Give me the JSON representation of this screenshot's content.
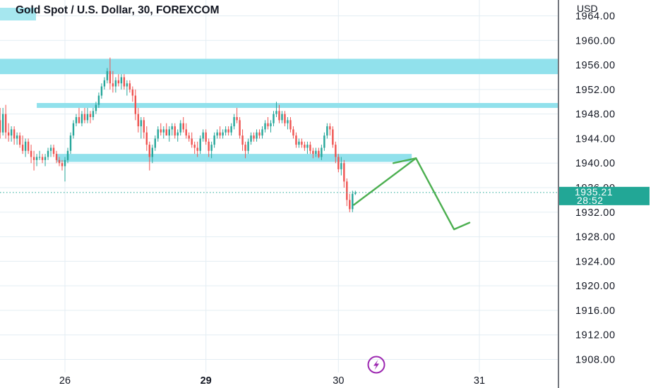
{
  "title": "Gold Spot / U.S. Dollar, 30, FOREXCOM",
  "currency": "USD",
  "colors": {
    "up": "#26a69a",
    "down": "#ef5350",
    "zone": "#91e1ec",
    "arrow": "#4caf50",
    "price_badge": "#22a796",
    "grid": "#e3edf3",
    "lightning": "#9c27b0"
  },
  "chart_data": {
    "type": "candlestick",
    "title": "Gold Spot / U.S. Dollar, 30, FOREXCOM",
    "ylabel": "USD",
    "ylim": [
      1906,
      1966
    ],
    "y_ticks": [
      "1964.00",
      "1960.00",
      "1956.00",
      "1952.00",
      "1948.00",
      "1944.00",
      "1940.00",
      "1936.00",
      "1932.00",
      "1928.00",
      "1924.00",
      "1920.00",
      "1916.00",
      "1912.00",
      "1908.00"
    ],
    "x_ticks": [
      {
        "label": "26",
        "bar": 23,
        "bold": false
      },
      {
        "label": "29",
        "bar": 73,
        "bold": true
      },
      {
        "label": "30",
        "bar": 120,
        "bold": false
      },
      {
        "label": "31",
        "bar": 170,
        "bold": false
      }
    ],
    "last_price": "1935.21",
    "countdown": "28:52",
    "ohlc": [
      [
        1947.0,
        1949.0,
        1944.0,
        1945.0
      ],
      [
        1945.0,
        1949.0,
        1944.5,
        1948.0
      ],
      [
        1948.0,
        1949.5,
        1944.0,
        1945.0
      ],
      [
        1945.0,
        1946.5,
        1943.5,
        1944.5
      ],
      [
        1944.5,
        1946.0,
        1943.5,
        1945.5
      ],
      [
        1945.5,
        1946.0,
        1943.0,
        1944.0
      ],
      [
        1944.0,
        1945.0,
        1943.0,
        1944.5
      ],
      [
        1944.5,
        1945.0,
        1942.5,
        1943.0
      ],
      [
        1943.0,
        1944.5,
        1941.5,
        1942.0
      ],
      [
        1942.0,
        1944.0,
        1941.0,
        1943.5
      ],
      [
        1943.5,
        1944.0,
        1941.5,
        1942.0
      ],
      [
        1942.0,
        1943.0,
        1940.0,
        1941.0
      ],
      [
        1941.0,
        1942.0,
        1938.8,
        1940.5
      ],
      [
        1940.5,
        1941.5,
        1939.5,
        1941.0
      ],
      [
        1941.0,
        1942.0,
        1940.5,
        1941.0
      ],
      [
        1941.0,
        1941.5,
        1940.0,
        1940.5
      ],
      [
        1940.5,
        1941.5,
        1939.5,
        1941.0
      ],
      [
        1941.0,
        1942.5,
        1940.5,
        1942.0
      ],
      [
        1942.0,
        1943.0,
        1941.0,
        1942.5
      ],
      [
        1942.5,
        1943.0,
        1941.0,
        1941.5
      ],
      [
        1941.5,
        1942.0,
        1940.0,
        1940.5
      ],
      [
        1940.5,
        1941.0,
        1939.5,
        1940.0
      ],
      [
        1940.0,
        1940.5,
        1938.8,
        1939.5
      ],
      [
        1939.5,
        1941.0,
        1937.0,
        1940.5
      ],
      [
        1940.5,
        1942.5,
        1940.0,
        1942.0
      ],
      [
        1942.0,
        1945.0,
        1941.5,
        1944.5
      ],
      [
        1944.5,
        1947.0,
        1944.0,
        1946.5
      ],
      [
        1946.5,
        1948.0,
        1946.0,
        1947.5
      ],
      [
        1947.5,
        1949.0,
        1946.5,
        1946.5
      ],
      [
        1946.5,
        1948.5,
        1946.0,
        1948.0
      ],
      [
        1948.0,
        1949.0,
        1946.5,
        1947.0
      ],
      [
        1947.0,
        1949.0,
        1946.5,
        1948.0
      ],
      [
        1948.0,
        1948.5,
        1946.5,
        1947.5
      ],
      [
        1947.5,
        1949.0,
        1947.0,
        1948.5
      ],
      [
        1948.5,
        1950.0,
        1948.0,
        1949.5
      ],
      [
        1949.5,
        1951.5,
        1949.0,
        1951.0
      ],
      [
        1951.0,
        1953.0,
        1950.5,
        1952.5
      ],
      [
        1952.5,
        1954.0,
        1952.0,
        1953.5
      ],
      [
        1953.5,
        1955.5,
        1953.0,
        1955.0
      ],
      [
        1955.0,
        1957.2,
        1952.0,
        1953.0
      ],
      [
        1953.0,
        1955.0,
        1951.5,
        1952.5
      ],
      [
        1952.5,
        1954.0,
        1951.5,
        1953.5
      ],
      [
        1953.5,
        1954.5,
        1952.5,
        1953.0
      ],
      [
        1953.0,
        1954.5,
        1952.0,
        1954.0
      ],
      [
        1954.0,
        1954.5,
        1952.0,
        1952.5
      ],
      [
        1952.5,
        1953.5,
        1951.0,
        1953.0
      ],
      [
        1953.0,
        1953.5,
        1951.5,
        1952.0
      ],
      [
        1952.0,
        1952.5,
        1950.0,
        1951.0
      ],
      [
        1951.0,
        1952.0,
        1947.0,
        1948.0
      ],
      [
        1948.0,
        1949.0,
        1945.0,
        1946.0
      ],
      [
        1946.0,
        1947.5,
        1944.0,
        1947.0
      ],
      [
        1947.0,
        1947.5,
        1944.0,
        1945.0
      ],
      [
        1945.0,
        1946.0,
        1942.0,
        1943.0
      ],
      [
        1943.0,
        1943.5,
        1938.8,
        1941.0
      ],
      [
        1941.0,
        1943.0,
        1940.0,
        1942.5
      ],
      [
        1942.5,
        1944.5,
        1942.0,
        1944.0
      ],
      [
        1944.0,
        1946.0,
        1943.5,
        1945.5
      ],
      [
        1945.5,
        1946.5,
        1944.5,
        1945.0
      ],
      [
        1945.0,
        1946.0,
        1944.0,
        1945.5
      ],
      [
        1945.5,
        1946.5,
        1944.5,
        1944.5
      ],
      [
        1944.5,
        1946.0,
        1943.5,
        1945.5
      ],
      [
        1945.5,
        1946.5,
        1944.5,
        1946.0
      ],
      [
        1946.0,
        1946.5,
        1944.0,
        1944.5
      ],
      [
        1944.5,
        1945.5,
        1943.5,
        1945.0
      ],
      [
        1945.0,
        1947.0,
        1944.5,
        1946.5
      ],
      [
        1946.5,
        1947.5,
        1945.0,
        1945.5
      ],
      [
        1945.5,
        1946.5,
        1944.0,
        1944.5
      ],
      [
        1944.5,
        1945.0,
        1943.5,
        1944.0
      ],
      [
        1944.0,
        1945.0,
        1942.5,
        1943.0
      ],
      [
        1943.0,
        1943.5,
        1941.5,
        1942.5
      ],
      [
        1942.5,
        1943.5,
        1941.0,
        1942.0
      ],
      [
        1942.0,
        1944.5,
        1941.5,
        1944.0
      ],
      [
        1944.0,
        1945.5,
        1943.5,
        1945.0
      ],
      [
        1945.0,
        1945.5,
        1943.0,
        1943.5
      ],
      [
        1943.5,
        1944.0,
        1941.0,
        1942.0
      ],
      [
        1942.0,
        1943.5,
        1940.8,
        1943.0
      ],
      [
        1943.0,
        1945.0,
        1942.5,
        1944.5
      ],
      [
        1944.5,
        1945.5,
        1944.0,
        1945.0
      ],
      [
        1945.0,
        1946.0,
        1944.0,
        1944.5
      ],
      [
        1944.5,
        1945.5,
        1944.0,
        1945.0
      ],
      [
        1945.0,
        1946.0,
        1944.5,
        1945.5
      ],
      [
        1945.5,
        1946.0,
        1944.5,
        1945.0
      ],
      [
        1945.0,
        1946.5,
        1944.5,
        1946.0
      ],
      [
        1946.0,
        1948.0,
        1945.5,
        1947.5
      ],
      [
        1947.5,
        1949.0,
        1946.5,
        1947.0
      ],
      [
        1947.0,
        1947.5,
        1944.0,
        1944.5
      ],
      [
        1944.5,
        1945.5,
        1942.0,
        1943.0
      ],
      [
        1943.0,
        1943.5,
        1940.8,
        1942.0
      ],
      [
        1942.0,
        1944.0,
        1941.5,
        1943.5
      ],
      [
        1943.5,
        1945.0,
        1943.0,
        1944.5
      ],
      [
        1944.5,
        1945.0,
        1943.5,
        1944.0
      ],
      [
        1944.0,
        1945.5,
        1943.5,
        1945.0
      ],
      [
        1945.0,
        1945.5,
        1944.0,
        1944.5
      ],
      [
        1944.5,
        1946.0,
        1944.0,
        1945.5
      ],
      [
        1945.5,
        1947.0,
        1945.0,
        1946.5
      ],
      [
        1946.5,
        1947.5,
        1945.5,
        1946.0
      ],
      [
        1946.0,
        1947.0,
        1945.0,
        1946.5
      ],
      [
        1946.5,
        1948.5,
        1946.0,
        1948.0
      ],
      [
        1948.0,
        1950.0,
        1947.5,
        1948.5
      ],
      [
        1948.5,
        1949.5,
        1946.5,
        1947.0
      ],
      [
        1947.0,
        1948.5,
        1946.5,
        1948.0
      ],
      [
        1948.0,
        1948.5,
        1946.0,
        1946.5
      ],
      [
        1946.5,
        1947.5,
        1945.5,
        1947.0
      ],
      [
        1947.0,
        1947.5,
        1945.0,
        1945.5
      ],
      [
        1945.5,
        1946.0,
        1944.0,
        1944.5
      ],
      [
        1944.5,
        1945.0,
        1942.5,
        1943.0
      ],
      [
        1943.0,
        1944.0,
        1942.5,
        1943.5
      ],
      [
        1943.5,
        1944.0,
        1942.5,
        1943.0
      ],
      [
        1943.0,
        1943.5,
        1942.0,
        1942.5
      ],
      [
        1942.5,
        1943.5,
        1941.5,
        1943.0
      ],
      [
        1943.0,
        1943.5,
        1941.5,
        1942.0
      ],
      [
        1942.0,
        1942.5,
        1940.8,
        1941.5
      ],
      [
        1941.5,
        1942.5,
        1941.0,
        1942.0
      ],
      [
        1942.0,
        1942.5,
        1940.8,
        1941.0
      ],
      [
        1941.0,
        1943.0,
        1940.5,
        1942.5
      ],
      [
        1942.5,
        1945.0,
        1942.0,
        1944.5
      ],
      [
        1944.5,
        1946.5,
        1944.0,
        1946.0
      ],
      [
        1946.0,
        1946.5,
        1944.5,
        1945.5
      ],
      [
        1945.5,
        1946.0,
        1942.5,
        1943.0
      ],
      [
        1943.0,
        1943.5,
        1940.0,
        1941.0
      ],
      [
        1941.0,
        1941.5,
        1938.5,
        1939.0
      ],
      [
        1939.0,
        1941.0,
        1938.0,
        1940.0
      ],
      [
        1940.0,
        1940.5,
        1936.0,
        1937.0
      ],
      [
        1937.0,
        1937.5,
        1933.0,
        1934.0
      ],
      [
        1934.0,
        1935.0,
        1932.0,
        1932.5
      ],
      [
        1932.5,
        1935.5,
        1932.0,
        1935.0
      ],
      [
        1935.0,
        1935.5,
        1934.8,
        1935.21
      ]
    ],
    "zones": [
      {
        "top": 1957.0,
        "bottom": 1954.5,
        "from_bar": -1,
        "to": "axis"
      },
      {
        "top": 1949.8,
        "bottom": 1949.0,
        "from_bar": 13,
        "to": "axis"
      },
      {
        "top": 1941.5,
        "bottom": 1940.2,
        "from_bar": 20,
        "to_bar": 146
      }
    ],
    "projection": [
      {
        "bar": 125.5,
        "price": 1933.2
      },
      {
        "bar": 147.5,
        "price": 1940.8
      },
      {
        "bar": 161,
        "price": 1929.2
      },
      {
        "bar": 166.5,
        "price": 1930.3
      }
    ]
  }
}
